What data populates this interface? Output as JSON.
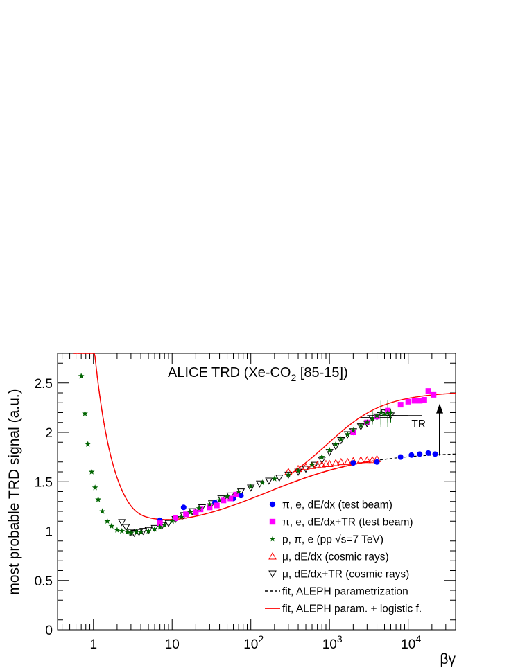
{
  "chart_data": {
    "type": "scatter",
    "title": "ALICE TRD (Xe-CO",
    "title_sub": "2",
    "title_rest": " [85-15])",
    "xlabel": "βγ",
    "ylabel": "most probable TRD signal (a.u.)",
    "x_scale": "log",
    "xlim": [
      0.35,
      40000
    ],
    "ylim": [
      0,
      2.8
    ],
    "grid": false,
    "legend_position": "bottom-right",
    "y_ticks": [
      {
        "v": 0,
        "label": "0"
      },
      {
        "v": 0.5,
        "label": "0.5"
      },
      {
        "v": 1,
        "label": "1"
      },
      {
        "v": 1.5,
        "label": "1.5"
      },
      {
        "v": 2,
        "label": "2"
      },
      {
        "v": 2.5,
        "label": "2.5"
      }
    ],
    "x_ticks": [
      {
        "v": 1,
        "base": "1",
        "exp": ""
      },
      {
        "v": 10,
        "base": "10",
        "exp": ""
      },
      {
        "v": 100,
        "base": "10",
        "exp": "2"
      },
      {
        "v": 1000,
        "base": "10",
        "exp": "3"
      },
      {
        "v": 10000,
        "base": "10",
        "exp": "4"
      }
    ],
    "annotation": {
      "label": "TR",
      "x": 22000,
      "y_from": 1.8,
      "y_to": 2.15
    },
    "series": [
      {
        "name": "π, e, dE/dx (test beam)",
        "marker": "circle",
        "color": "#0000ff",
        "points": [
          [
            7,
            1.11
          ],
          [
            14,
            1.24
          ],
          [
            35,
            1.29
          ],
          [
            60,
            1.33
          ],
          [
            75,
            1.36
          ],
          [
            2000,
            1.69
          ],
          [
            4000,
            1.7
          ],
          [
            8000,
            1.75
          ],
          [
            11000,
            1.77
          ],
          [
            14000,
            1.78
          ],
          [
            18000,
            1.79
          ],
          [
            22000,
            1.78
          ]
        ]
      },
      {
        "name": "π, e, dE/dx+TR (test beam)",
        "marker": "square",
        "color": "#ff00ff",
        "points": [
          [
            7,
            1.08
          ],
          [
            11,
            1.13
          ],
          [
            15,
            1.17
          ],
          [
            20,
            1.19
          ],
          [
            23,
            1.22
          ],
          [
            30,
            1.24
          ],
          [
            37,
            1.26
          ],
          [
            45,
            1.31
          ],
          [
            55,
            1.33
          ],
          [
            65,
            1.37
          ],
          [
            2000,
            2.0
          ],
          [
            3000,
            2.1
          ],
          [
            4000,
            2.16
          ],
          [
            5500,
            2.22
          ],
          [
            8000,
            2.28
          ],
          [
            10000,
            2.31
          ],
          [
            12000,
            2.32
          ],
          [
            14000,
            2.32
          ],
          [
            16000,
            2.33
          ],
          [
            18000,
            2.42
          ],
          [
            21000,
            2.38
          ]
        ]
      },
      {
        "name": "p, π, e (pp √s=7 TeV)",
        "marker": "star",
        "color": "#006400",
        "points": [
          [
            0.7,
            2.57
          ],
          [
            0.78,
            2.19
          ],
          [
            0.85,
            1.88
          ],
          [
            0.95,
            1.6
          ],
          [
            1.05,
            1.44
          ],
          [
            1.15,
            1.32
          ],
          [
            1.3,
            1.2
          ],
          [
            1.5,
            1.1
          ],
          [
            1.7,
            1.05
          ],
          [
            2.0,
            1.01
          ],
          [
            2.3,
            1.0
          ],
          [
            2.7,
            0.99
          ],
          [
            3.0,
            0.98
          ],
          [
            3.5,
            0.99
          ],
          [
            4.0,
            0.99
          ],
          [
            5.0,
            1.0
          ],
          [
            6.0,
            1.02
          ],
          [
            7.0,
            1.04
          ],
          [
            8.0,
            1.06
          ],
          [
            10,
            1.1
          ],
          [
            13,
            1.14
          ],
          [
            17,
            1.19
          ],
          [
            22,
            1.23
          ],
          [
            30,
            1.27
          ],
          [
            40,
            1.31
          ],
          [
            50,
            1.35
          ],
          [
            70,
            1.4
          ],
          [
            100,
            1.45
          ],
          [
            140,
            1.49
          ],
          [
            200,
            1.53
          ],
          [
            300,
            1.57
          ],
          [
            400,
            1.61
          ],
          [
            600,
            1.67
          ],
          [
            800,
            1.75
          ],
          [
            1000,
            1.82
          ],
          [
            1200,
            1.88
          ],
          [
            1400,
            1.93
          ],
          [
            1700,
            1.98
          ],
          [
            2000,
            2.02
          ],
          [
            2500,
            2.07
          ],
          [
            3000,
            2.1
          ],
          [
            3500,
            2.14
          ],
          [
            4000,
            2.17
          ],
          [
            4500,
            2.2
          ],
          [
            5000,
            2.18
          ],
          [
            5500,
            2.2
          ],
          [
            6000,
            2.2
          ]
        ]
      },
      {
        "name": "μ, dE/dx (cosmic rays)",
        "marker": "triangle-up",
        "color": "#ff0000",
        "points": [
          [
            300,
            1.6
          ],
          [
            400,
            1.63
          ],
          [
            500,
            1.65
          ],
          [
            600,
            1.66
          ],
          [
            700,
            1.67
          ],
          [
            800,
            1.67
          ],
          [
            900,
            1.68
          ],
          [
            1000,
            1.68
          ],
          [
            1200,
            1.69
          ],
          [
            1400,
            1.7
          ],
          [
            1700,
            1.7
          ],
          [
            2000,
            1.71
          ],
          [
            2500,
            1.72
          ],
          [
            3000,
            1.72
          ],
          [
            3500,
            1.72
          ],
          [
            4000,
            1.73
          ]
        ]
      },
      {
        "name": "μ, dE/dx+TR (cosmic rays)",
        "marker": "triangle-down",
        "color": "#000000",
        "points": [
          [
            2.3,
            1.09
          ],
          [
            2.6,
            1.04
          ],
          [
            3.0,
            0.99
          ],
          [
            3.3,
            0.98
          ],
          [
            3.8,
            0.99
          ],
          [
            4.3,
            1.0
          ],
          [
            5.0,
            1.01
          ],
          [
            6,
            1.03
          ],
          [
            7.5,
            1.06
          ],
          [
            9,
            1.08
          ],
          [
            11,
            1.12
          ],
          [
            14,
            1.16
          ],
          [
            18,
            1.2
          ],
          [
            24,
            1.24
          ],
          [
            32,
            1.28
          ],
          [
            42,
            1.33
          ],
          [
            55,
            1.36
          ],
          [
            75,
            1.4
          ],
          [
            100,
            1.44
          ],
          [
            130,
            1.48
          ],
          [
            170,
            1.51
          ],
          [
            230,
            1.54
          ],
          [
            300,
            1.57
          ],
          [
            400,
            1.6
          ],
          [
            500,
            1.63
          ],
          [
            650,
            1.67
          ],
          [
            800,
            1.72
          ],
          [
            1000,
            1.8
          ],
          [
            1200,
            1.86
          ],
          [
            1400,
            1.92
          ],
          [
            1700,
            1.98
          ],
          [
            2000,
            2.01
          ],
          [
            2500,
            2.06
          ],
          [
            3000,
            2.09
          ],
          [
            3500,
            2.14
          ],
          [
            4000,
            2.16
          ],
          [
            5000,
            2.2
          ],
          [
            6000,
            2.17
          ]
        ]
      }
    ],
    "error_bars": [
      {
        "x": 3500,
        "xlo": 2500,
        "xhi": 6000,
        "y": 2.15,
        "ylo": 2.08,
        "yhi": 2.22
      },
      {
        "x": 4500,
        "xlo": 3000,
        "xhi": 7000,
        "y": 2.17,
        "ylo": 2.08,
        "yhi": 2.27
      },
      {
        "x": 5500,
        "xlo": 3500,
        "xhi": 10000,
        "y": 2.17,
        "ylo": 2.1,
        "yhi": 2.25
      },
      {
        "x": 6000,
        "xlo": 4000,
        "xhi": 15000,
        "y": 2.17,
        "ylo": 2.1,
        "yhi": 2.24
      },
      {
        "x": 4500,
        "xlo": 4000,
        "xhi": 5000,
        "y": 2.2,
        "ylo": 2.05,
        "yhi": 2.32
      },
      {
        "x": 5500,
        "xlo": 5000,
        "xhi": 6000,
        "y": 2.22,
        "ylo": 2.05,
        "yhi": 2.33
      }
    ],
    "fit_lines": [
      {
        "name": "fit, ALEPH parametrization",
        "style": "dashed",
        "color": "#000000"
      },
      {
        "name": "fit, ALEPH param. + logistic f.",
        "style": "solid",
        "color": "#ff0000"
      }
    ]
  }
}
